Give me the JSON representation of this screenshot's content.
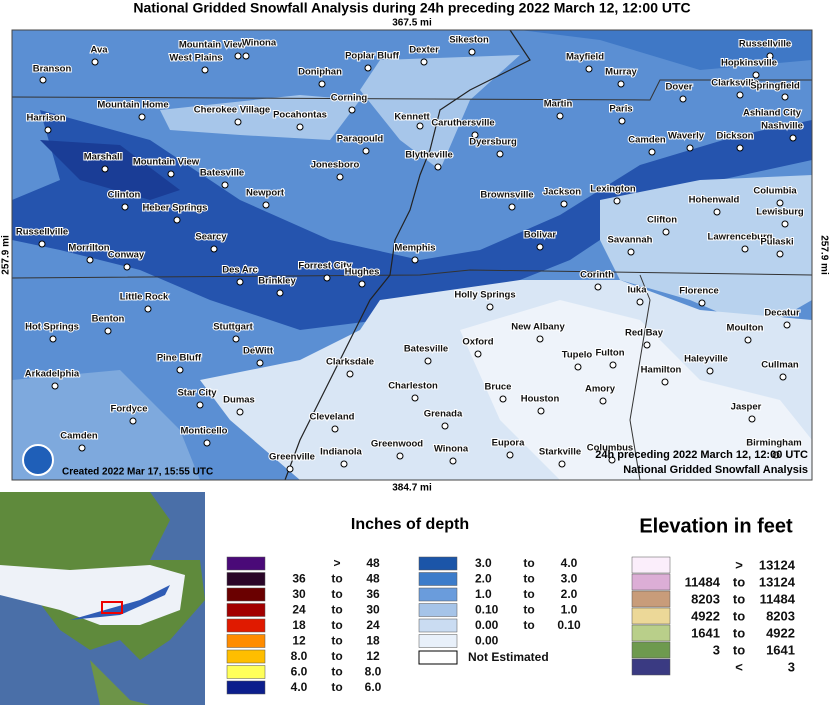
{
  "title": "National Gridded Snowfall Analysis during 24h preceding 2022 March 12, 12:00 UTC",
  "map": {
    "top_scale": "367.5 mi",
    "bottom_scale": "384.7 mi",
    "left_scale": "257.9 mi",
    "right_scale": "257.9 mi",
    "created": "Created 2022 Mar 17, 15:55 UTC",
    "overlay_period": "24h preceding 2022 March 12, 12:00 UTC",
    "overlay_product": "National Gridded Snowfall Analysis",
    "cities": [
      "Ava",
      "Mountain View",
      "Winona",
      "Branson",
      "West Plains",
      "Doniphan",
      "Poplar Bluff",
      "Dexter",
      "Sikeston",
      "Mayfield",
      "Murray",
      "Russellville",
      "Hopkinsville",
      "Dover",
      "Clarksville",
      "Springfield",
      "Corning",
      "Kennett",
      "Caruthersville",
      "Martin",
      "Paris",
      "Ashland City",
      "Nashville",
      "Mountain Home",
      "Cherokee Village",
      "Pocahontas",
      "Harrison",
      "Paragould",
      "Dyersburg",
      "Camden",
      "Waverly",
      "Dickson",
      "Blytheville",
      "Marshall",
      "Mountain View",
      "Jonesboro",
      "Batesville",
      "Clinton",
      "Newport",
      "Brownsville",
      "Jackson",
      "Lexington",
      "Columbia",
      "Hohenwald",
      "Lewisburg",
      "Heber Springs",
      "Clifton",
      "Russellville",
      "Searcy",
      "Bolivar",
      "Lawrenceburg",
      "Pulaski",
      "Savannah",
      "Morrilton",
      "Conway",
      "Memphis",
      "Des Arc",
      "Forrest City",
      "Hughes",
      "Brinkley",
      "Corinth",
      "Iuka",
      "Florence",
      "Little Rock",
      "Holly Springs",
      "Decatur",
      "Benton",
      "Stuttgart",
      "New Albany",
      "Hot Springs",
      "Red Bay",
      "Moulton",
      "DeWitt",
      "Oxford",
      "Batesville",
      "Fulton",
      "Tupelo",
      "Pine Bluff",
      "Clarksdale",
      "Haleyville",
      "Cullman",
      "Hamilton",
      "Arkadelphia",
      "Charleston",
      "Bruce",
      "Amory",
      "Star City",
      "Dumas",
      "Houston",
      "Fordyce",
      "Jasper",
      "Cleveland",
      "Grenada",
      "Monticello",
      "Camden",
      "Greenwood",
      "Eupora",
      "Birmingham",
      "Indianola",
      "Winona",
      "Starkville",
      "Columbus",
      "Greenville"
    ]
  },
  "snow_legend": {
    "title": "Inches of depth",
    "not_estimated": "Not Estimated",
    "rows": [
      {
        "color": "#4a0a78",
        "sep": ">",
        "high": "48"
      },
      {
        "color": "#2a0628",
        "low": "36",
        "sep": "to",
        "high": "48"
      },
      {
        "color": "#6a0000",
        "low": "30",
        "sep": "to",
        "high": "36"
      },
      {
        "color": "#a20000",
        "low": "24",
        "sep": "to",
        "high": "30"
      },
      {
        "color": "#e01a00",
        "low": "18",
        "sep": "to",
        "high": "24"
      },
      {
        "color": "#ff8c00",
        "low": "12",
        "sep": "to",
        "high": "18"
      },
      {
        "color": "#ffbe00",
        "low": "8.0",
        "sep": "to",
        "high": "12"
      },
      {
        "color": "#ffff5a",
        "low": "6.0",
        "sep": "to",
        "high": "8.0"
      },
      {
        "color": "#0c1e8c",
        "low": "4.0",
        "sep": "to",
        "high": "6.0"
      },
      {
        "color": "#1b55a8",
        "low": "3.0",
        "sep": "to",
        "high": "4.0"
      },
      {
        "color": "#3c7cca",
        "low": "2.0",
        "sep": "to",
        "high": "3.0"
      },
      {
        "color": "#6a9cdc",
        "low": "1.0",
        "sep": "to",
        "high": "2.0"
      },
      {
        "color": "#a6c4e8",
        "low": "0.10",
        "sep": "to",
        "high": "1.0"
      },
      {
        "color": "#cadcf2",
        "low": "0.00",
        "sep": "to",
        "high": "0.10"
      },
      {
        "color": "#e8f0fa",
        "low": "0.00"
      }
    ]
  },
  "elevation_legend": {
    "title": "Elevation in feet",
    "rows": [
      {
        "color": "#fbeefb",
        "sep": ">",
        "high": "13124"
      },
      {
        "color": "#dcaed6",
        "low": "11484",
        "sep": "to",
        "high": "13124"
      },
      {
        "color": "#c89c7a",
        "low": "8203",
        "sep": "to",
        "high": "11484"
      },
      {
        "color": "#ecd898",
        "low": "4922",
        "sep": "to",
        "high": "8203"
      },
      {
        "color": "#b9cf8a",
        "low": "1641",
        "sep": "to",
        "high": "4922"
      },
      {
        "color": "#6e9a4e",
        "low": "3",
        "sep": "to",
        "high": "1641"
      },
      {
        "color": "#3a3a82",
        "sep": "<",
        "high": "3"
      }
    ]
  }
}
